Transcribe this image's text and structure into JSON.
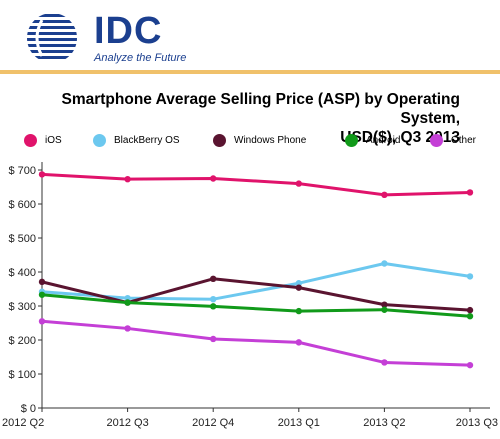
{
  "logo": {
    "text": "IDC",
    "tagline": "Analyze the Future"
  },
  "chart_data": {
    "type": "line",
    "title_lines": [
      "Smartphone Average Selling Price (ASP) by Operating System,",
      "USD($), Q3 2013"
    ],
    "categories": [
      "2012 Q2",
      "2012 Q3",
      "2012 Q4",
      "2013 Q1",
      "2013 Q2",
      "2013 Q3"
    ],
    "y_tick_labels": [
      "$ 0",
      "$ 100",
      "$ 200",
      "$ 300",
      "$ 400",
      "$ 500",
      "$ 600",
      "$ 700"
    ],
    "ylim": [
      0,
      700
    ],
    "legend_position": "top",
    "grid": false,
    "series": [
      {
        "name": "iOS",
        "color": "#e0136b",
        "values": [
          687,
          673,
          675,
          660,
          627,
          634
        ]
      },
      {
        "name": "BlackBerry OS",
        "color": "#6cc8ef",
        "values": [
          342,
          323,
          320,
          367,
          425,
          387
        ]
      },
      {
        "name": "Windows Phone",
        "color": "#5a1430",
        "values": [
          371,
          310,
          380,
          354,
          304,
          288
        ]
      },
      {
        "name": "Android",
        "color": "#119a1a",
        "values": [
          333,
          310,
          299,
          285,
          289,
          270
        ]
      },
      {
        "name": "Other",
        "color": "#c43fd6",
        "values": [
          255,
          234,
          203,
          193,
          134,
          126
        ]
      }
    ]
  }
}
